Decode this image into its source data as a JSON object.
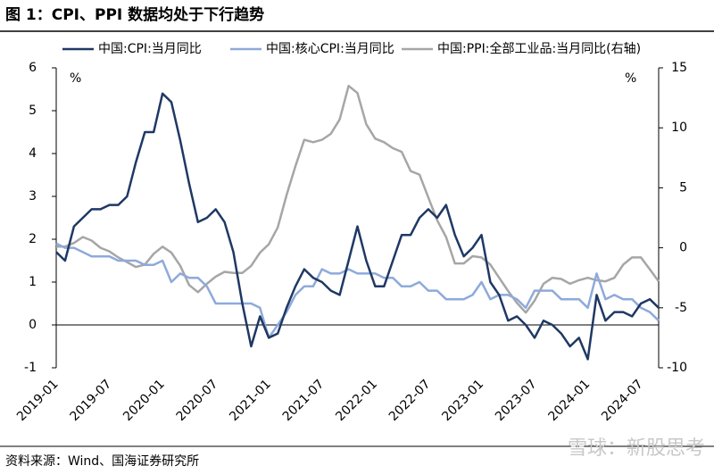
{
  "chart_data": {
    "type": "line",
    "title": "图 1：CPI、PPI 数据均处于下行趋势",
    "source": "资料来源：Wind、国海证券研究所",
    "watermark": "雪球：新股思考",
    "y_label": "%",
    "y2_label": "%",
    "categories": [
      "2019-01",
      null,
      null,
      null,
      null,
      null,
      "2019-07",
      null,
      null,
      null,
      null,
      null,
      "2020-01",
      null,
      null,
      null,
      null,
      null,
      "2020-07",
      null,
      null,
      null,
      null,
      null,
      "2021-01",
      null,
      null,
      null,
      null,
      null,
      "2021-07",
      null,
      null,
      null,
      null,
      null,
      "2022-01",
      null,
      null,
      null,
      null,
      null,
      "2022-07",
      null,
      null,
      null,
      null,
      null,
      "2023-01",
      null,
      null,
      null,
      null,
      null,
      "2023-07",
      null,
      null,
      null,
      null,
      null,
      "2024-01",
      null,
      null,
      null,
      null,
      null,
      "2024-07",
      null,
      null
    ],
    "series": [
      {
        "name": "中国:CPI:当月同比",
        "color": "#1f3864",
        "values": [
          1.7,
          1.5,
          2.3,
          2.5,
          2.7,
          2.7,
          2.8,
          2.8,
          3.0,
          3.8,
          4.5,
          4.5,
          5.4,
          5.2,
          4.3,
          3.3,
          2.4,
          2.5,
          2.7,
          2.4,
          1.7,
          0.5,
          -0.5,
          0.2,
          -0.3,
          -0.2,
          0.4,
          0.9,
          1.3,
          1.1,
          1.0,
          0.8,
          0.7,
          1.5,
          2.3,
          1.5,
          0.9,
          0.9,
          1.5,
          2.1,
          2.1,
          2.5,
          2.7,
          2.5,
          2.8,
          2.1,
          1.6,
          1.8,
          2.1,
          1.0,
          0.7,
          0.1,
          0.2,
          0.0,
          -0.3,
          0.1,
          0.0,
          -0.2,
          -0.5,
          -0.3,
          -0.8,
          0.7,
          0.1,
          0.3,
          0.3,
          0.2,
          0.5,
          0.6,
          0.4
        ]
      },
      {
        "name": "中国:核心CPI:当月同比",
        "color": "#8eaadb",
        "values": [
          1.9,
          1.8,
          1.8,
          1.7,
          1.6,
          1.6,
          1.6,
          1.5,
          1.5,
          1.5,
          1.4,
          1.4,
          1.5,
          1.0,
          1.2,
          1.1,
          1.1,
          0.9,
          0.5,
          0.5,
          0.5,
          0.5,
          0.5,
          0.4,
          -0.3,
          0.0,
          0.3,
          0.7,
          0.9,
          0.9,
          1.3,
          1.2,
          1.2,
          1.3,
          1.2,
          1.2,
          1.2,
          1.1,
          1.1,
          0.9,
          0.9,
          1.0,
          0.8,
          0.8,
          0.6,
          0.6,
          0.6,
          0.7,
          1.0,
          0.6,
          0.7,
          0.7,
          0.6,
          0.4,
          0.8,
          0.8,
          0.8,
          0.6,
          0.6,
          0.6,
          0.4,
          1.2,
          0.6,
          0.7,
          0.6,
          0.6,
          0.4,
          0.3,
          0.1
        ]
      },
      {
        "name": "中国:PPI:全部工业品:当月同比(右轴)",
        "color": "#a6a6a6",
        "axis": "y2",
        "values": [
          0.1,
          0.1,
          0.4,
          0.9,
          0.6,
          0.0,
          -0.3,
          -0.8,
          -1.2,
          -1.6,
          -1.4,
          -0.5,
          0.1,
          -0.4,
          -1.5,
          -3.1,
          -3.7,
          -3.0,
          -2.4,
          -2.0,
          -2.1,
          -2.1,
          -1.5,
          -0.4,
          0.3,
          1.7,
          4.4,
          6.8,
          9.0,
          8.8,
          9.0,
          9.5,
          10.7,
          13.5,
          12.9,
          10.3,
          9.1,
          8.8,
          8.3,
          8.0,
          6.4,
          6.1,
          4.2,
          2.3,
          0.9,
          -1.3,
          -1.3,
          -0.7,
          -0.8,
          -1.4,
          -2.5,
          -3.6,
          -4.6,
          -5.4,
          -4.4,
          -3.0,
          -2.5,
          -2.6,
          -3.0,
          -2.7,
          -2.5,
          -2.7,
          -2.8,
          -2.5,
          -1.4,
          -0.8,
          -0.8,
          -1.8,
          -2.8
        ]
      }
    ],
    "ylim": [
      -1,
      6
    ],
    "yticks": [
      -1,
      0,
      1,
      2,
      3,
      4,
      5,
      6
    ],
    "y2lim": [
      -10,
      15
    ],
    "y2ticks": [
      -10,
      -5,
      0,
      5,
      10,
      15
    ],
    "grid": false,
    "legend": "top"
  }
}
